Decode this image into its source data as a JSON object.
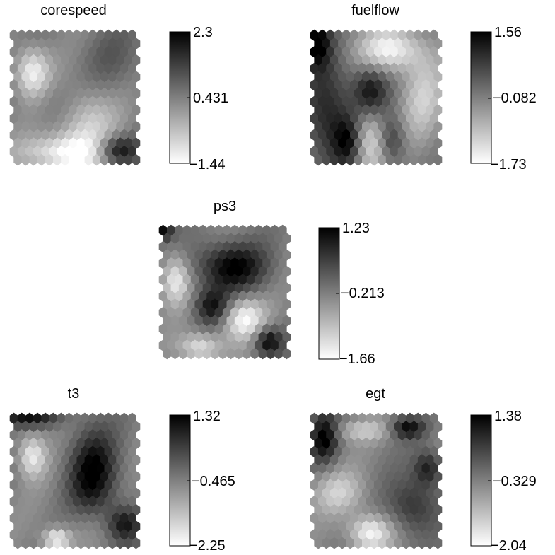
{
  "chart_data": [
    {
      "type": "heatmap",
      "title": "corespeed",
      "grid": {
        "rows": 16,
        "cols": 16,
        "cell_shape": "hexagon"
      },
      "colormap": "gray (white = minimum, black = maximum)",
      "colorbar": {
        "min": -1.44,
        "mid": 0.431,
        "max": 2.3,
        "tick_labels": [
          "2.3",
          "0.431",
          "−1.44"
        ]
      },
      "pattern": [
        {
          "u": 0.15,
          "v": 0.3,
          "value": -1.3,
          "sx": 0.1,
          "sy": 0.14
        },
        {
          "u": 0.58,
          "v": 0.72,
          "value": -0.8,
          "sx": 0.18,
          "sy": 0.22
        },
        {
          "u": 0.4,
          "v": 0.95,
          "value": -1.2,
          "sx": 0.25,
          "sy": 0.1
        },
        {
          "u": 0.85,
          "v": 0.92,
          "value": 2.3,
          "sx": 0.12,
          "sy": 0.08
        },
        {
          "u": 0.82,
          "v": 0.2,
          "value": 0.9,
          "sx": 0.2,
          "sy": 0.2
        },
        {
          "u": 0.35,
          "v": 0.55,
          "value": 0.9,
          "sx": 0.15,
          "sy": 0.15
        }
      ]
    },
    {
      "type": "heatmap",
      "title": "fuelflow",
      "grid": {
        "rows": 16,
        "cols": 16,
        "cell_shape": "hexagon"
      },
      "colormap": "gray (white = minimum, black = maximum)",
      "colorbar": {
        "min": -1.73,
        "mid": -0.082,
        "max": 1.56,
        "tick_labels": [
          "1.56",
          "−0.082",
          "−1.73"
        ]
      },
      "pattern": [
        {
          "u": 0.02,
          "v": 0.05,
          "value": 1.56,
          "sx": 0.08,
          "sy": 0.15
        },
        {
          "u": 0.62,
          "v": 0.12,
          "value": -1.6,
          "sx": 0.18,
          "sy": 0.12
        },
        {
          "u": 0.45,
          "v": 0.85,
          "value": -1.5,
          "sx": 0.12,
          "sy": 0.18
        },
        {
          "u": 0.88,
          "v": 0.5,
          "value": -1.0,
          "sx": 0.12,
          "sy": 0.25
        },
        {
          "u": 0.12,
          "v": 0.65,
          "value": 1.2,
          "sx": 0.14,
          "sy": 0.3
        },
        {
          "u": 0.45,
          "v": 0.45,
          "value": 1.3,
          "sx": 0.1,
          "sy": 0.14
        },
        {
          "u": 0.28,
          "v": 0.85,
          "value": 1.3,
          "sx": 0.08,
          "sy": 0.14
        },
        {
          "u": 0.62,
          "v": 0.85,
          "value": 1.2,
          "sx": 0.08,
          "sy": 0.14
        }
      ]
    },
    {
      "type": "heatmap",
      "title": "ps3",
      "grid": {
        "rows": 16,
        "cols": 16,
        "cell_shape": "hexagon"
      },
      "colormap": "gray (white = minimum, black = maximum)",
      "colorbar": {
        "min": -1.66,
        "mid": -0.213,
        "max": 1.23,
        "tick_labels": [
          "1.23",
          "−0.213",
          "−1.66"
        ]
      },
      "pattern": [
        {
          "u": 0.1,
          "v": 0.4,
          "value": -1.5,
          "sx": 0.08,
          "sy": 0.14
        },
        {
          "u": 0.65,
          "v": 0.72,
          "value": -1.6,
          "sx": 0.12,
          "sy": 0.12
        },
        {
          "u": 0.3,
          "v": 0.95,
          "value": -1.4,
          "sx": 0.12,
          "sy": 0.08
        },
        {
          "u": 0.55,
          "v": 0.3,
          "value": 1.23,
          "sx": 0.2,
          "sy": 0.14
        },
        {
          "u": 0.4,
          "v": 0.62,
          "value": 1.0,
          "sx": 0.1,
          "sy": 0.1
        },
        {
          "u": 0.85,
          "v": 0.9,
          "value": 1.2,
          "sx": 0.08,
          "sy": 0.08
        },
        {
          "u": 0.0,
          "v": 0.0,
          "value": 1.1,
          "sx": 0.06,
          "sy": 0.06
        }
      ]
    },
    {
      "type": "heatmap",
      "title": "t3",
      "grid": {
        "rows": 16,
        "cols": 16,
        "cell_shape": "hexagon"
      },
      "colormap": "gray (white = minimum, black = maximum)",
      "colorbar": {
        "min": -2.25,
        "mid": -0.465,
        "max": 1.32,
        "tick_labels": [
          "1.32",
          "−0.465",
          "−2.25"
        ]
      },
      "pattern": [
        {
          "u": 0.15,
          "v": 0.3,
          "value": -2.0,
          "sx": 0.08,
          "sy": 0.12
        },
        {
          "u": 0.35,
          "v": 0.97,
          "value": -2.2,
          "sx": 0.08,
          "sy": 0.06
        },
        {
          "u": 0.65,
          "v": 0.45,
          "value": 1.32,
          "sx": 0.14,
          "sy": 0.25
        },
        {
          "u": 0.1,
          "v": 0.0,
          "value": 1.0,
          "sx": 0.2,
          "sy": 0.05
        },
        {
          "u": 0.6,
          "v": 0.85,
          "value": -0.8,
          "sx": 0.18,
          "sy": 0.12
        },
        {
          "u": 0.9,
          "v": 0.85,
          "value": 1.0,
          "sx": 0.1,
          "sy": 0.1
        }
      ]
    },
    {
      "type": "heatmap",
      "title": "egt",
      "grid": {
        "rows": 16,
        "cols": 16,
        "cell_shape": "hexagon"
      },
      "colormap": "gray (white = minimum, black = maximum)",
      "colorbar": {
        "min": -2.04,
        "mid": -0.329,
        "max": 1.38,
        "tick_labels": [
          "1.38",
          "−0.329",
          "−2.04"
        ]
      },
      "pattern": [
        {
          "u": 0.08,
          "v": 0.15,
          "value": 1.38,
          "sx": 0.08,
          "sy": 0.14
        },
        {
          "u": 0.75,
          "v": 0.08,
          "value": 1.2,
          "sx": 0.1,
          "sy": 0.06
        },
        {
          "u": 0.45,
          "v": 0.92,
          "value": -2.0,
          "sx": 0.12,
          "sy": 0.1
        },
        {
          "u": 0.4,
          "v": 0.1,
          "value": -1.2,
          "sx": 0.18,
          "sy": 0.06
        },
        {
          "u": 0.2,
          "v": 0.6,
          "value": -1.3,
          "sx": 0.15,
          "sy": 0.12
        },
        {
          "u": 0.8,
          "v": 0.7,
          "value": 0.8,
          "sx": 0.14,
          "sy": 0.16
        },
        {
          "u": 0.92,
          "v": 0.4,
          "value": 1.0,
          "sx": 0.08,
          "sy": 0.1
        }
      ]
    }
  ]
}
